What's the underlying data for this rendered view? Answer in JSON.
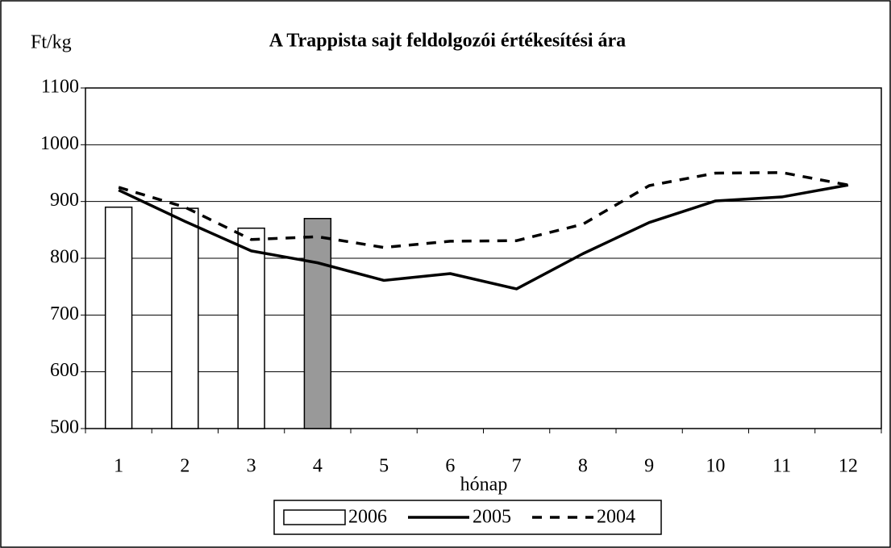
{
  "chart_data": {
    "type": "bar_line",
    "title": "A Trappista sajt feldolgozói értékesítési ára",
    "y_label": "Ft/kg",
    "x_label": "hónap",
    "categories": [
      "1",
      "2",
      "3",
      "4",
      "5",
      "6",
      "7",
      "8",
      "9",
      "10",
      "11",
      "12"
    ],
    "series": [
      {
        "name": "2006",
        "type": "bar",
        "color": "#ffffff",
        "colors": [
          "#ffffff",
          "#ffffff",
          "#ffffff",
          "#999999"
        ],
        "values": [
          890,
          888,
          853,
          870,
          null,
          null,
          null,
          null,
          null,
          null,
          null,
          null
        ]
      },
      {
        "name": "2005",
        "type": "line",
        "color": "#000000",
        "dash": false,
        "values": [
          920,
          865,
          813,
          792,
          761,
          773,
          746,
          808,
          863,
          901,
          908,
          929
        ]
      },
      {
        "name": "2004",
        "type": "line",
        "color": "#000000",
        "dash": true,
        "values": [
          925,
          890,
          833,
          838,
          819,
          830,
          831,
          860,
          928,
          950,
          951,
          929
        ]
      }
    ],
    "ylim": [
      500,
      1100
    ],
    "yticks": [
      500,
      600,
      700,
      800,
      900,
      1000,
      1100
    ],
    "grid": true,
    "legend": "bottom"
  }
}
